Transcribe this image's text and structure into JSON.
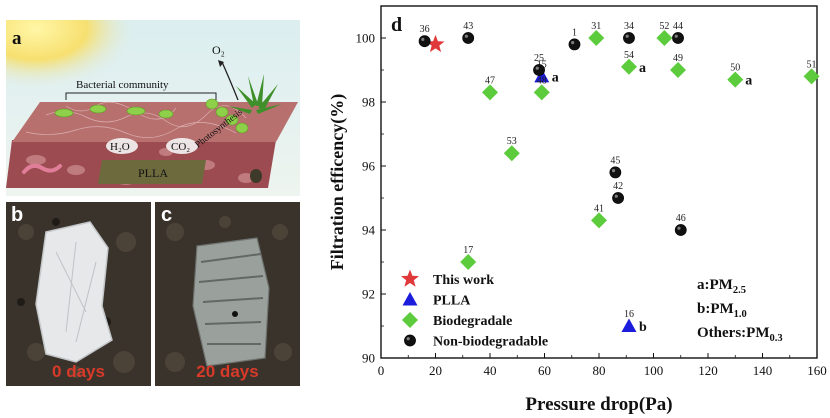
{
  "panels": {
    "a": {
      "letter": "a",
      "label_bacterial": "Bacterial community",
      "label_o2": "O₂",
      "label_h2o": "H₂O",
      "label_co2": "CO₂",
      "label_photosynthesis": "Photosynthesis",
      "label_plla": "PLLA",
      "colors": {
        "sky": "#cfe4ea",
        "soil_top": "#b4696c",
        "soil_side": "#9c4c51",
        "film": "#6d6a3e",
        "plant": "#3f8f2a",
        "bacteria": "#8ed04a"
      }
    },
    "b": {
      "letter": "b",
      "days": "0 days"
    },
    "c": {
      "letter": "c",
      "days": "20 days"
    }
  },
  "chart_data": {
    "type": "scatter",
    "panel_letter": "d",
    "xlabel": "Pressure drop(Pa)",
    "ylabel": "Filtration efficency(%)",
    "xlim": [
      0,
      160
    ],
    "ylim": [
      90,
      101
    ],
    "xticks": [
      0,
      20,
      40,
      60,
      80,
      100,
      120,
      140,
      160
    ],
    "yticks": [
      90,
      92,
      94,
      96,
      98,
      100
    ],
    "grid": false,
    "legend_position": "bottom-left",
    "series": [
      {
        "name": "This work",
        "marker": "star",
        "color": "#e0393a",
        "points": [
          {
            "x": 20,
            "y": 99.8,
            "label": ""
          }
        ]
      },
      {
        "name": "PLLA",
        "marker": "triangle",
        "color": "#1c1cdc",
        "points": [
          {
            "x": 59,
            "y": 98.8,
            "label": "15",
            "suffix": "a"
          },
          {
            "x": 91,
            "y": 91.0,
            "label": "16",
            "suffix": "b"
          }
        ]
      },
      {
        "name": "Biodegradale",
        "marker": "diamond",
        "color": "#5ccc3c",
        "points": [
          {
            "x": 32,
            "y": 93.0,
            "label": "17"
          },
          {
            "x": 40,
            "y": 98.3,
            "label": "47"
          },
          {
            "x": 48,
            "y": 96.4,
            "label": "53"
          },
          {
            "x": 59,
            "y": 98.3,
            "label": "48"
          },
          {
            "x": 79,
            "y": 100.0,
            "label": "31"
          },
          {
            "x": 80,
            "y": 94.3,
            "label": "41"
          },
          {
            "x": 91,
            "y": 99.1,
            "label": "54",
            "suffix": "a"
          },
          {
            "x": 104,
            "y": 100.0,
            "label": "52"
          },
          {
            "x": 109,
            "y": 99.0,
            "label": "49"
          },
          {
            "x": 130,
            "y": 98.7,
            "label": "50",
            "suffix": "a"
          },
          {
            "x": 158,
            "y": 98.8,
            "label": "51"
          }
        ]
      },
      {
        "name": "Non-biodegradable",
        "marker": "circle",
        "color": "#111111",
        "points": [
          {
            "x": 16,
            "y": 99.9,
            "label": "36"
          },
          {
            "x": 32,
            "y": 100.0,
            "label": "43"
          },
          {
            "x": 58,
            "y": 99.0,
            "label": "25"
          },
          {
            "x": 71,
            "y": 99.8,
            "label": "1"
          },
          {
            "x": 86,
            "y": 95.8,
            "label": "45"
          },
          {
            "x": 87,
            "y": 95.0,
            "label": "42"
          },
          {
            "x": 91,
            "y": 100.0,
            "label": "34"
          },
          {
            "x": 109,
            "y": 100.0,
            "label": "44"
          },
          {
            "x": 110,
            "y": 94.0,
            "label": "46"
          }
        ]
      }
    ],
    "annotations": {
      "a": "a:PM",
      "a_sub": "2.5",
      "b": "b:PM",
      "b_sub": "1.0",
      "others": "Others:PM",
      "others_sub": "0.3"
    }
  }
}
